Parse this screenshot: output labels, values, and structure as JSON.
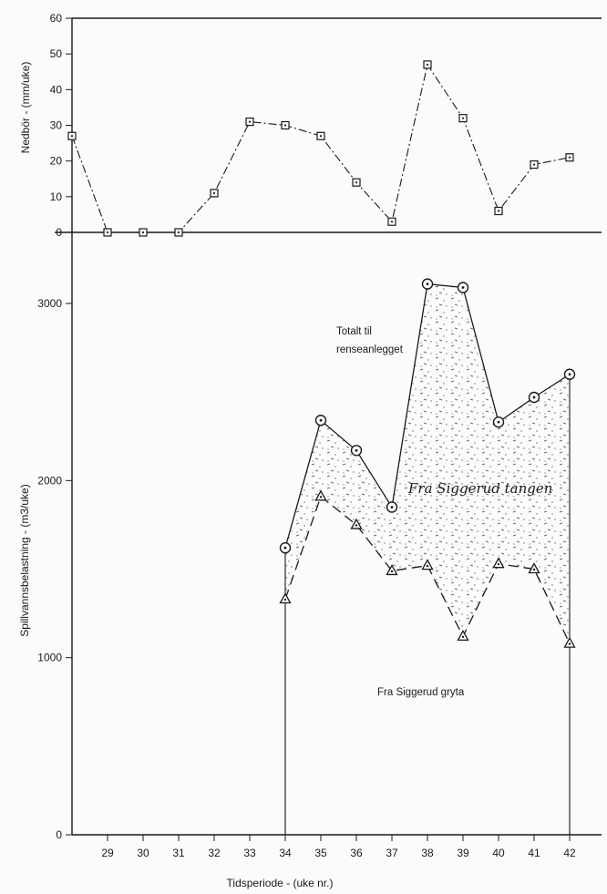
{
  "chart_data": [
    {
      "type": "line",
      "ylabel": "Nedbör - (mm/uke)",
      "ylim": [
        0,
        60
      ],
      "yticks": [
        0,
        10,
        20,
        30,
        40,
        50,
        60
      ],
      "series": [
        {
          "marker": "square",
          "style": "dash-dot",
          "points": [
            {
              "x": 28,
              "y": 27
            },
            {
              "x": 29,
              "y": 0
            },
            {
              "x": 30,
              "y": 0
            },
            {
              "x": 31,
              "y": 0
            },
            {
              "x": 32,
              "y": 11
            },
            {
              "x": 33,
              "y": 31
            },
            {
              "x": 34,
              "y": 30
            },
            {
              "x": 35,
              "y": 27
            },
            {
              "x": 36,
              "y": 14
            },
            {
              "x": 37,
              "y": 3
            },
            {
              "x": 38,
              "y": 47
            },
            {
              "x": 39,
              "y": 32
            },
            {
              "x": 40,
              "y": 6
            },
            {
              "x": 41,
              "y": 19
            },
            {
              "x": 42,
              "y": 21
            }
          ]
        }
      ]
    },
    {
      "type": "area",
      "xlabel": "Tidsperiode - (uke nr.)",
      "ylabel": "Spillvannsbelastning - (m3/uke)",
      "ylim": [
        0,
        3000
      ],
      "yticks": [
        0,
        1000,
        2000,
        3000
      ],
      "xticks": [
        29,
        30,
        31,
        32,
        33,
        34,
        35,
        36,
        37,
        38,
        39,
        40,
        41,
        42
      ],
      "series": [
        {
          "marker": "circle",
          "style": "solid",
          "points": [
            {
              "x": 34,
              "y": 1620
            },
            {
              "x": 35,
              "y": 2340
            },
            {
              "x": 36,
              "y": 2170
            },
            {
              "x": 37,
              "y": 1850
            },
            {
              "x": 38,
              "y": 3110
            },
            {
              "x": 39,
              "y": 3090
            },
            {
              "x": 40,
              "y": 2330
            },
            {
              "x": 41,
              "y": 2470
            },
            {
              "x": 42,
              "y": 2600
            }
          ]
        },
        {
          "marker": "triangle",
          "style": "dashed",
          "points": [
            {
              "x": 34,
              "y": 1330
            },
            {
              "x": 35,
              "y": 1910
            },
            {
              "x": 36,
              "y": 1750
            },
            {
              "x": 37,
              "y": 1490
            },
            {
              "x": 38,
              "y": 1520
            },
            {
              "x": 39,
              "y": 1120
            },
            {
              "x": 40,
              "y": 1530
            },
            {
              "x": 41,
              "y": 1500
            },
            {
              "x": 42,
              "y": 1080
            }
          ]
        }
      ],
      "annotations": [
        {
          "text_lines": [
            "Totalt til",
            "renseanlegget"
          ]
        },
        {
          "text_lines": [
            "Fra Siggerud tangen"
          ]
        },
        {
          "text_lines": [
            "Fra Siggerud gryta"
          ]
        }
      ]
    }
  ],
  "colors": {
    "ink": "#1a1a1a",
    "paper": "#fbfbf9",
    "stipple": "#6b6b6b"
  }
}
